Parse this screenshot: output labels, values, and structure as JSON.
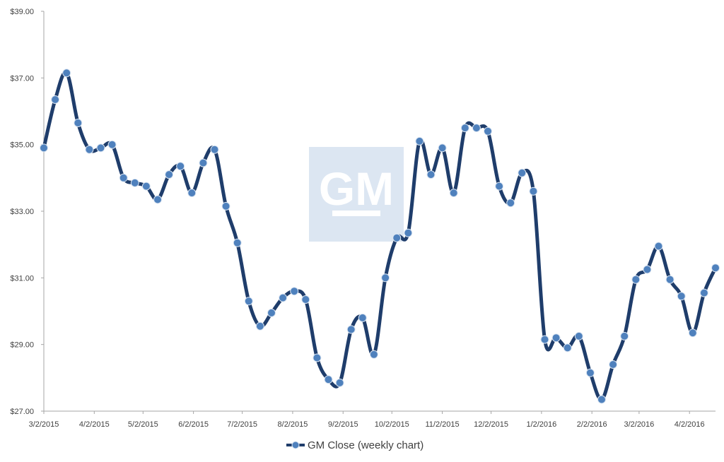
{
  "colors": {
    "line": "#1f3d6b",
    "marker": "#4f81bd",
    "marker_stroke": "#dce6f2",
    "axis": "#a6a6a6",
    "watermark_bg": "#dce6f2"
  },
  "watermark": {
    "text": "GM"
  },
  "chart_data": {
    "type": "line",
    "title": "",
    "xlabel": "",
    "ylabel": "",
    "ylim": [
      27,
      39
    ],
    "y_ticks": [
      27,
      29,
      31,
      33,
      35,
      37,
      39
    ],
    "y_tick_labels": [
      "$27.00",
      "$29.00",
      "$31.00",
      "$33.00",
      "$35.00",
      "$37.00",
      "$39.00"
    ],
    "x_tick_labels": [
      "3/2/2015",
      "4/2/2015",
      "5/2/2015",
      "6/2/2015",
      "7/2/2015",
      "8/2/2015",
      "9/2/2015",
      "10/2/2015",
      "11/2/2015",
      "12/2/2015",
      "1/2/2016",
      "2/2/2016",
      "3/2/2016",
      "4/2/2016"
    ],
    "grid": false,
    "legend_position": "bottom",
    "series": [
      {
        "name": "GM Close (weekly chart)",
        "x": [
          "2015-03-02",
          "2015-03-09",
          "2015-03-16",
          "2015-03-23",
          "2015-03-30",
          "2015-04-06",
          "2015-04-13",
          "2015-04-20",
          "2015-04-27",
          "2015-05-04",
          "2015-05-11",
          "2015-05-18",
          "2015-05-25",
          "2015-06-01",
          "2015-06-08",
          "2015-06-15",
          "2015-06-22",
          "2015-06-29",
          "2015-07-06",
          "2015-07-13",
          "2015-07-20",
          "2015-07-27",
          "2015-08-03",
          "2015-08-10",
          "2015-08-17",
          "2015-08-24",
          "2015-08-31",
          "2015-09-07",
          "2015-09-14",
          "2015-09-21",
          "2015-09-28",
          "2015-10-05",
          "2015-10-12",
          "2015-10-19",
          "2015-10-26",
          "2015-11-02",
          "2015-11-09",
          "2015-11-16",
          "2015-11-23",
          "2015-11-30",
          "2015-12-07",
          "2015-12-14",
          "2015-12-21",
          "2015-12-28",
          "2016-01-04",
          "2016-01-11",
          "2016-01-18",
          "2016-01-25",
          "2016-02-01",
          "2016-02-08",
          "2016-02-15",
          "2016-02-22",
          "2016-02-29",
          "2016-03-07",
          "2016-03-14",
          "2016-03-21",
          "2016-03-28",
          "2016-04-04",
          "2016-04-11",
          "2016-04-18"
        ],
        "values": [
          34.9,
          36.35,
          37.15,
          35.65,
          34.85,
          34.9,
          35.0,
          34.0,
          33.85,
          33.75,
          33.35,
          34.1,
          34.35,
          33.55,
          34.45,
          34.85,
          33.15,
          32.05,
          30.3,
          29.55,
          29.95,
          30.4,
          30.6,
          30.35,
          28.6,
          27.95,
          27.85,
          29.45,
          29.8,
          28.7,
          31.0,
          32.2,
          32.35,
          35.1,
          34.1,
          34.9,
          33.55,
          35.5,
          35.5,
          35.4,
          33.75,
          33.25,
          34.15,
          33.6,
          29.15,
          29.2,
          28.9,
          29.25,
          28.15,
          27.35,
          28.4,
          29.25,
          30.95,
          31.25,
          31.95,
          30.95,
          30.45,
          29.35,
          30.55,
          31.3
        ]
      }
    ]
  }
}
